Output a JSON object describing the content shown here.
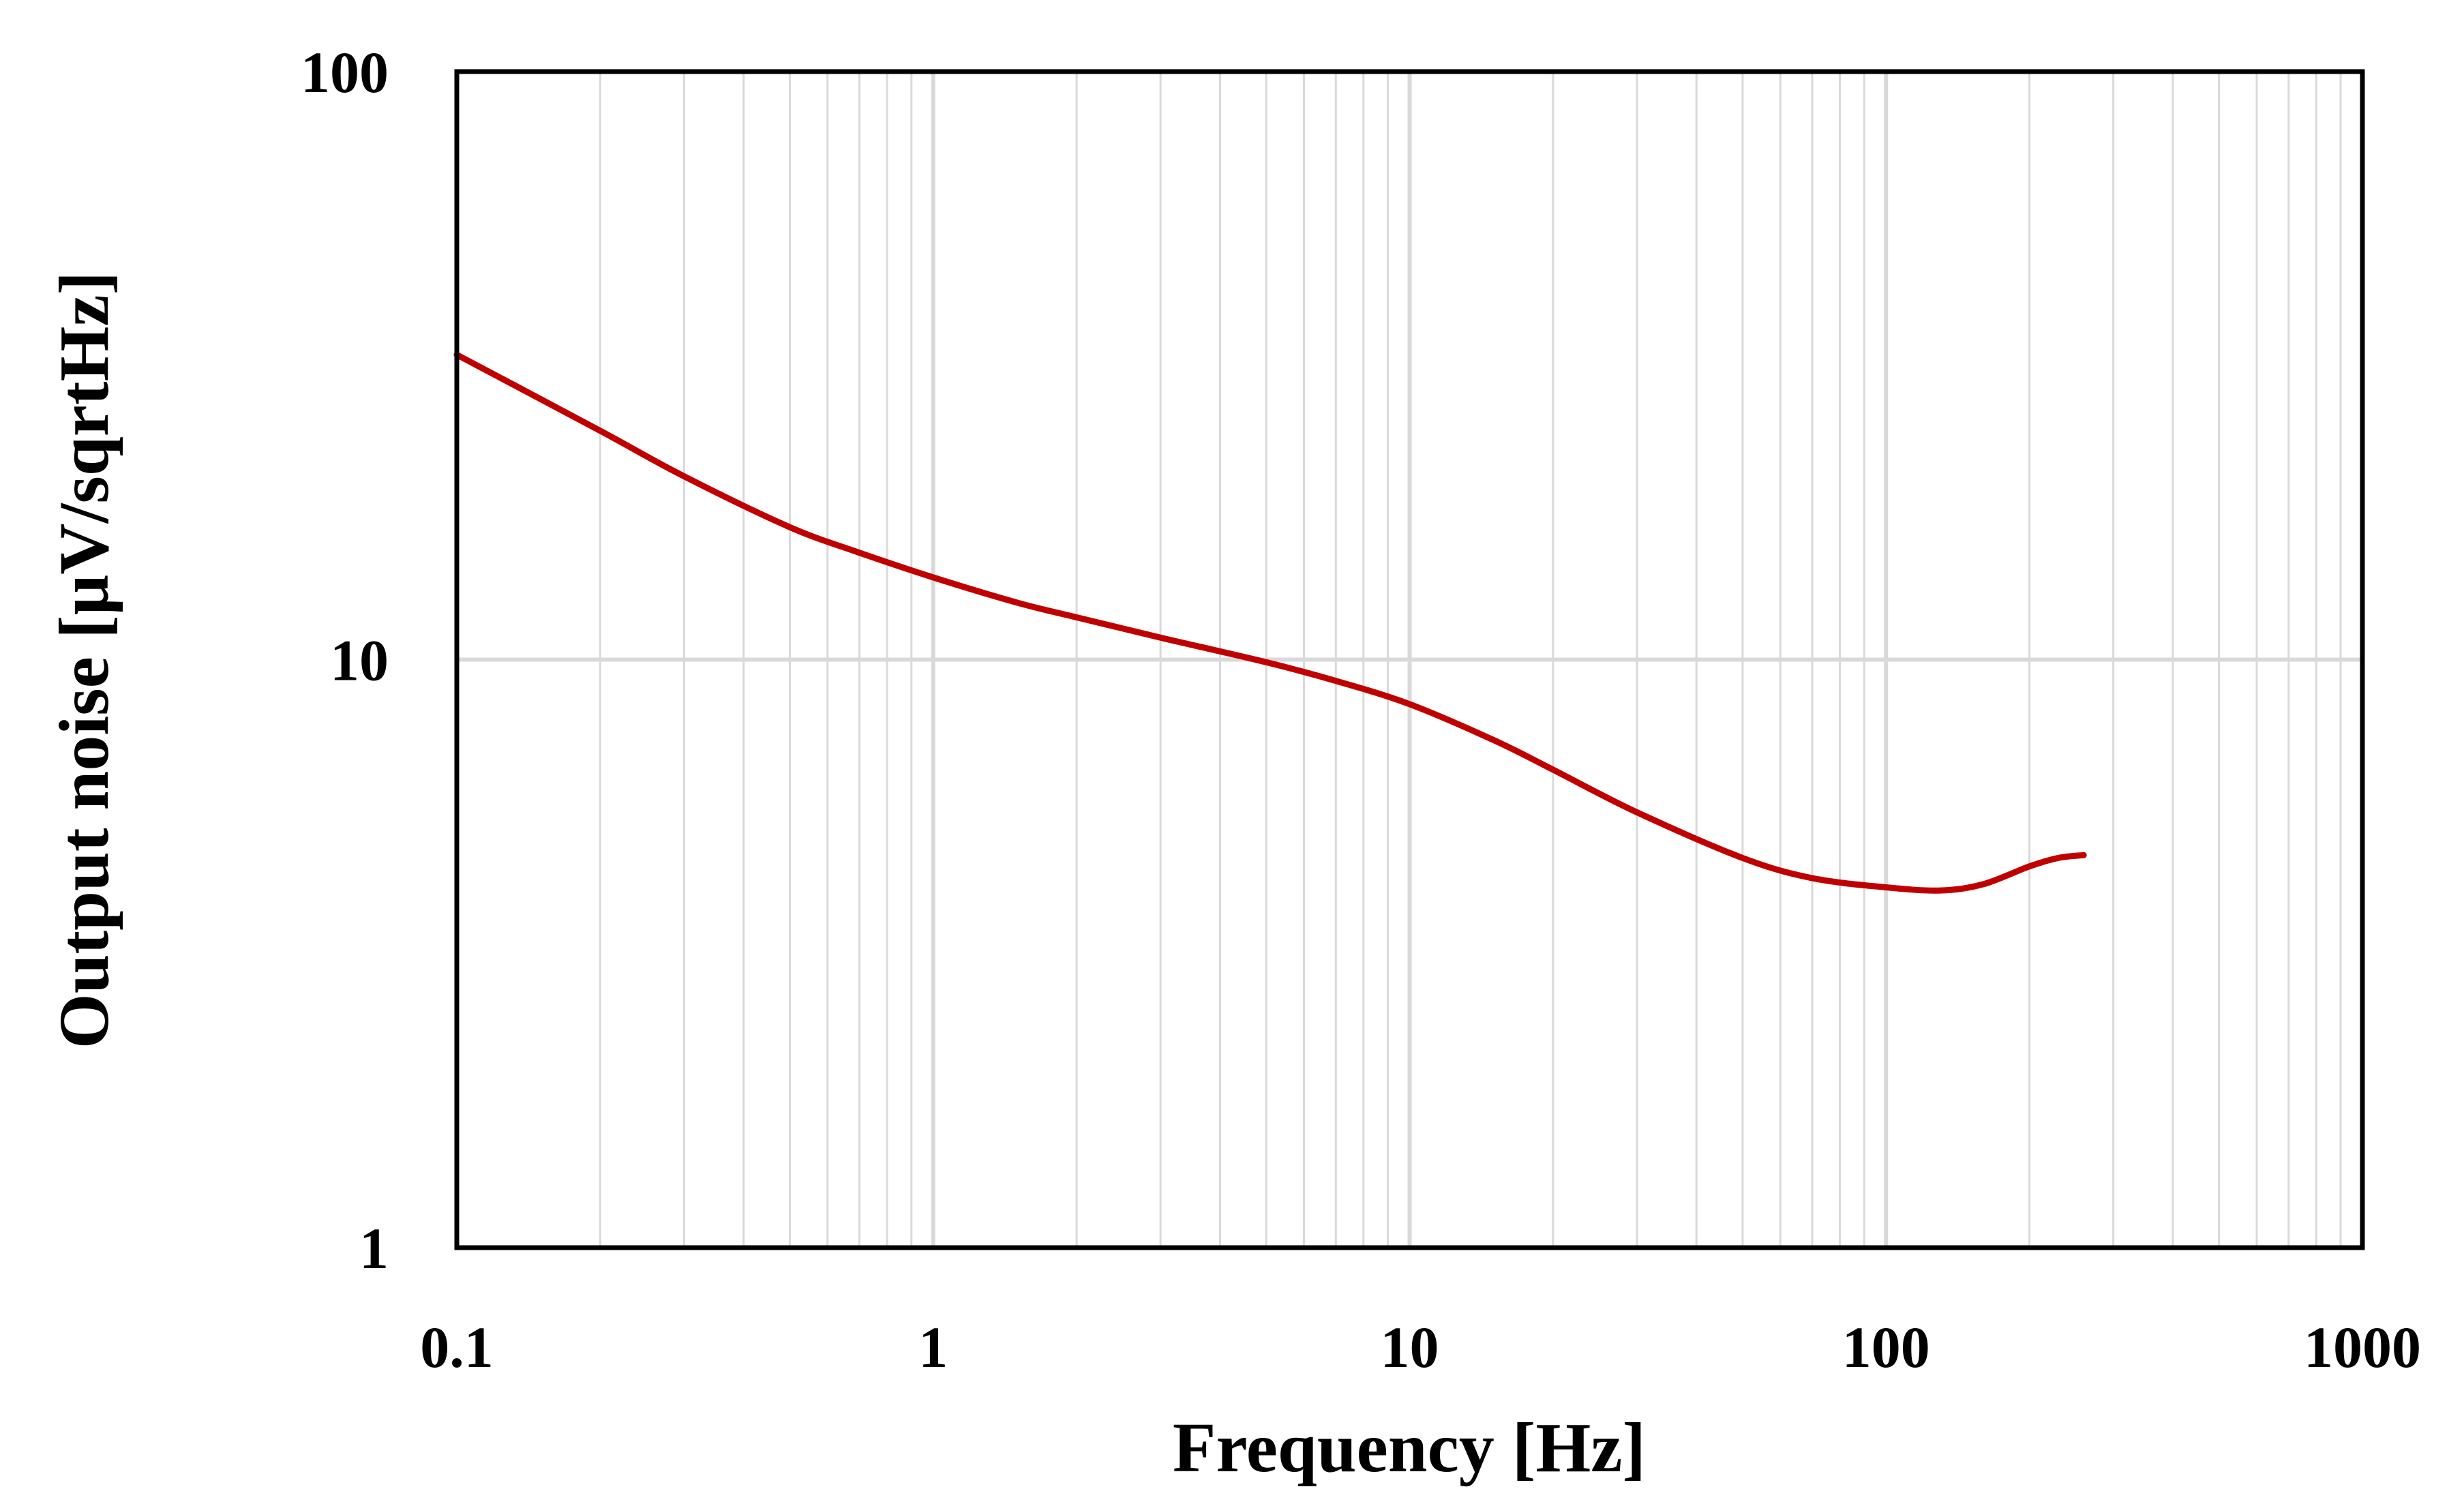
{
  "chart_data": {
    "type": "line",
    "title": "",
    "xlabel": "Frequency [Hz]",
    "ylabel": "Output noise [µV/sqrtHz]",
    "xscale": "log",
    "yscale": "log",
    "xlim": [
      0.1,
      1000
    ],
    "ylim": [
      1,
      100
    ],
    "xticks": [
      0.1,
      1,
      10,
      100,
      1000
    ],
    "xtick_labels": [
      "0.1",
      "1",
      "10",
      "100",
      "1000"
    ],
    "yticks": [
      1,
      10,
      100
    ],
    "ytick_labels": [
      "1",
      "10",
      "100"
    ],
    "grid": true,
    "legend": "none",
    "series": [
      {
        "name": "Output noise",
        "color": "#c00000",
        "x": [
          0.1,
          0.2,
          0.3,
          0.5,
          0.7,
          1,
          1.5,
          2,
          3,
          5,
          7,
          10,
          15,
          20,
          30,
          50,
          70,
          100,
          130,
          160,
          200,
          230,
          260
        ],
        "y": [
          33,
          24.5,
          20.5,
          16.8,
          15.2,
          13.8,
          12.5,
          11.8,
          10.9,
          9.9,
          9.2,
          8.4,
          7.3,
          6.5,
          5.5,
          4.6,
          4.25,
          4.1,
          4.05,
          4.15,
          4.45,
          4.6,
          4.65
        ]
      }
    ]
  },
  "colors": {
    "line": "#c00000",
    "grid": "#d9d9d9",
    "axis": "#000000"
  }
}
